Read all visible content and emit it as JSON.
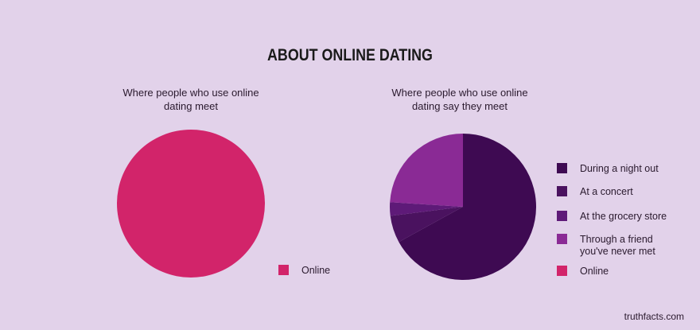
{
  "title": "ABOUT ONLINE DATING",
  "credit": "truthfacts.com",
  "chart_data": [
    {
      "type": "pie",
      "title": "Where people who use online dating meet",
      "categories": [
        "Online"
      ],
      "values": [
        100
      ],
      "colors": [
        "#d2246a"
      ],
      "legend": "right"
    },
    {
      "type": "pie",
      "title": "Where people who use online dating say they meet",
      "categories": [
        "During a night out",
        "At a concert",
        "At the grocery store",
        "Through a friend you've never met",
        "Online"
      ],
      "values": [
        67,
        6,
        3,
        24,
        0
      ],
      "colors": [
        "#3e0a52",
        "#4a125f",
        "#5e1a78",
        "#8a2a95",
        "#d2246a"
      ],
      "legend": "right"
    }
  ]
}
